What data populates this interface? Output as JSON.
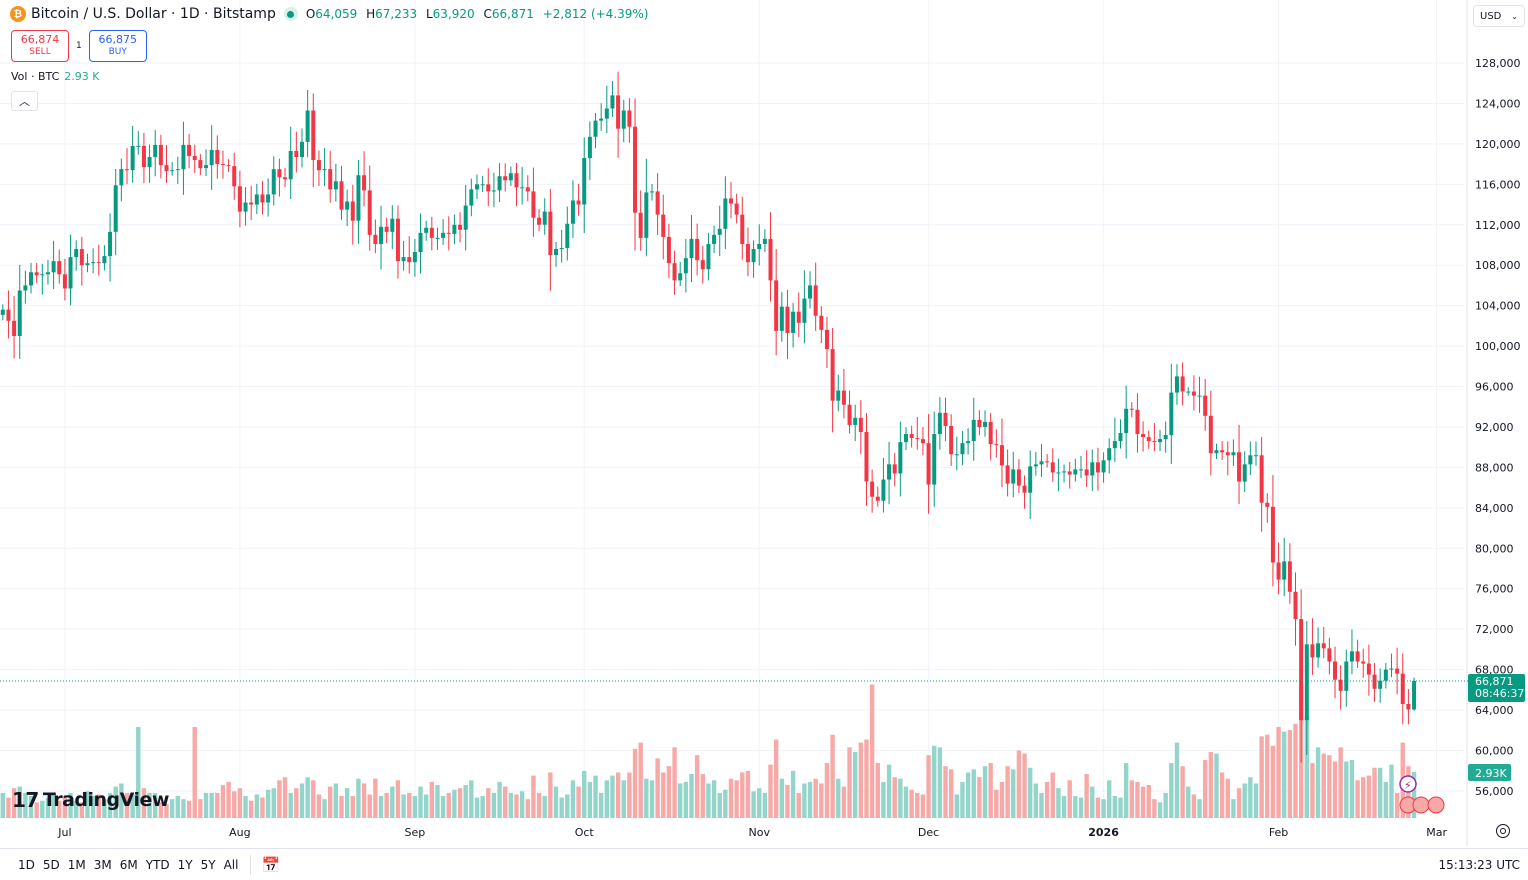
{
  "header": {
    "logo_letter": "₿",
    "title": "Bitcoin / U.S. Dollar · 1D · Bitstamp",
    "ohlc": {
      "o_label": "O",
      "o": "64,059",
      "h_label": "H",
      "h": "67,233",
      "l_label": "L",
      "l": "63,920",
      "c_label": "C",
      "c": "66,871",
      "change": "+2,812 (+4.39%)"
    }
  },
  "trade": {
    "sell_price": "66,874",
    "sell_label": "SELL",
    "spread": "1",
    "buy_price": "66,875",
    "buy_label": "BUY"
  },
  "volume_legend": {
    "label": "Vol · BTC",
    "value": "2.93 K"
  },
  "currency": {
    "value": "USD",
    "icon": "chevron-down-icon"
  },
  "colors": {
    "up": "#089981",
    "down": "#f23645",
    "vol_up": "#93d5ca",
    "vol_down": "#f7a9a7",
    "sell": "#f23645",
    "buy": "#2962ff"
  },
  "price_label": {
    "value": "66,871",
    "countdown": "08:46:37"
  },
  "volume_label": "2.93K",
  "branding": "TradingView",
  "bottom_bar": {
    "ranges": [
      "1D",
      "5D",
      "1M",
      "3M",
      "6M",
      "YTD",
      "1Y",
      "5Y",
      "All"
    ],
    "time": "15:13:23 UTC"
  },
  "chart_data": {
    "type": "candlestick",
    "symbol": "BTCUSD",
    "interval": "1D",
    "y_ticks": [
      56000,
      60000,
      64000,
      68000,
      72000,
      76000,
      80000,
      84000,
      88000,
      92000,
      96000,
      100000,
      104000,
      108000,
      112000,
      116000,
      120000,
      124000,
      128000
    ],
    "ylim": [
      52600,
      130000
    ],
    "grid": true,
    "time_axis": [
      {
        "label": "Jul",
        "date": "2025-07-01",
        "bold": false
      },
      {
        "label": "Aug",
        "date": "2025-08-01",
        "bold": false
      },
      {
        "label": "Sep",
        "date": "2025-09-01",
        "bold": false
      },
      {
        "label": "Oct",
        "date": "2025-10-01",
        "bold": false
      },
      {
        "label": "Nov",
        "date": "2025-11-01",
        "bold": false
      },
      {
        "label": "Dec",
        "date": "2025-12-01",
        "bold": false
      },
      {
        "label": "2026",
        "date": "2026-01-01",
        "bold": true
      },
      {
        "label": "Feb",
        "date": "2026-02-01",
        "bold": false
      },
      {
        "label": "Mar",
        "date": "2026-03-01",
        "bold": false
      }
    ],
    "last_candle": {
      "open": 64059,
      "high": 67233,
      "low": 63920,
      "close": 66871
    },
    "daily": [
      {
        "month": "2025-06",
        "from_day": 20,
        "close": [
          103600,
          102500,
          101000,
          105500,
          106000,
          107300,
          107000,
          107100,
          107300,
          108400,
          107100
        ],
        "volume_k": [
          1.6,
          1.3,
          1.9,
          2.0,
          1.6,
          1.4,
          1.0,
          1.1,
          1.3,
          1.6,
          1.1
        ]
      },
      {
        "month": "2025-07",
        "from_day": 1,
        "close": [
          105700,
          108800,
          109600,
          108000,
          108200,
          108300,
          108200,
          108900,
          111300,
          115900,
          117500,
          117400,
          119800,
          119800,
          117700,
          118700,
          119900,
          117900,
          117300,
          117400,
          117500,
          119900,
          118800,
          118400,
          117600,
          117900,
          119400,
          118000,
          117900,
          117800,
          115800
        ],
        "volume_k": [
          1.4,
          1.6,
          1.1,
          1.0,
          1.7,
          1.4,
          1.5,
          1.2,
          1.6,
          2.0,
          2.2,
          1.6,
          1.5,
          5.8,
          1.9,
          1.6,
          1.6,
          1.0,
          0.9,
          1.2,
          1.4,
          1.2,
          1.1,
          5.8,
          1.2,
          1.6,
          1.6,
          1.6,
          2.1,
          2.3,
          1.7
        ]
      },
      {
        "month": "2025-08",
        "from_day": 1,
        "close": [
          113300,
          114200,
          114000,
          115000,
          114200,
          115000,
          117500,
          116700,
          116500,
          119300,
          118700,
          120200,
          123300,
          118400,
          117400,
          117500,
          115500,
          116300,
          113500,
          114300,
          112400,
          116900,
          115400,
          111000,
          110100,
          111800,
          111300,
          112600,
          108400,
          108800,
          108300
        ],
        "volume_k": [
          1.9,
          1.4,
          1.1,
          1.5,
          1.3,
          1.8,
          1.9,
          2.4,
          2.6,
          1.6,
          1.9,
          2.2,
          2.6,
          2.4,
          1.5,
          1.2,
          2.0,
          2.2,
          1.4,
          1.9,
          1.4,
          2.5,
          2.2,
          1.5,
          2.5,
          1.4,
          1.6,
          2.0,
          2.4,
          1.5,
          1.6
        ]
      },
      {
        "month": "2025-09",
        "from_day": 1,
        "close": [
          109300,
          111200,
          111700,
          110700,
          110700,
          111200,
          111100,
          112000,
          111500,
          113900,
          115500,
          116000,
          116000,
          115300,
          115400,
          116800,
          116400,
          117100,
          115700,
          115700,
          115300,
          112700,
          112000,
          113300,
          109000,
          109600,
          109700,
          112100,
          114400,
          114000
        ],
        "volume_k": [
          1.4,
          2.0,
          1.5,
          2.3,
          2.1,
          1.4,
          1.6,
          1.8,
          1.9,
          2.1,
          2.4,
          1.3,
          1.4,
          1.9,
          1.6,
          2.3,
          2.0,
          1.6,
          1.5,
          1.7,
          1.2,
          2.7,
          1.6,
          1.4,
          2.9,
          2.0,
          1.3,
          1.5,
          2.4,
          2.0
        ]
      },
      {
        "month": "2025-10",
        "from_day": 1,
        "close": [
          118600,
          120700,
          122300,
          122500,
          123500,
          124800,
          121500,
          123300,
          121700,
          113200,
          110700,
          115200,
          115300,
          113000,
          110800,
          108200,
          106500,
          107200,
          108700,
          110600,
          108500,
          107600,
          110100,
          111000,
          111600,
          114600,
          114100,
          113000,
          110100,
          108300,
          109600
        ],
        "volume_k": [
          3.0,
          2.3,
          2.7,
          1.6,
          2.4,
          2.7,
          2.9,
          2.4,
          2.9,
          4.4,
          4.8,
          2.5,
          2.4,
          3.8,
          2.9,
          3.3,
          4.5,
          2.2,
          2.3,
          2.8,
          4.0,
          2.8,
          2.2,
          2.4,
          1.6,
          1.8,
          2.5,
          2.4,
          2.9,
          3.0,
          1.7
        ]
      },
      {
        "month": "2025-11",
        "from_day": 1,
        "close": [
          110100,
          110600,
          106500,
          101500,
          103900,
          101300,
          103400,
          102300,
          104700,
          106000,
          103000,
          101600,
          99700,
          94600,
          95600,
          94200,
          92200,
          92900,
          91500,
          86600,
          85100,
          84700,
          86800,
          88300,
          87400,
          90500,
          91300,
          90900,
          90800,
          90400
        ],
        "volume_k": [
          1.9,
          1.6,
          3.4,
          5.0,
          2.5,
          2.1,
          3.0,
          1.6,
          2.2,
          2.3,
          2.5,
          2.2,
          3.5,
          5.3,
          2.5,
          2.0,
          4.5,
          4.2,
          4.8,
          5.0,
          8.5,
          3.5,
          2.3,
          3.4,
          2.6,
          2.5,
          2.0,
          1.8,
          1.6,
          1.5
        ]
      },
      {
        "month": "2025-12",
        "from_day": 1,
        "close": [
          86300,
          91300,
          93400,
          92100,
          89300,
          89300,
          90400,
          90600,
          92700,
          92000,
          92500,
          90300,
          90200,
          88200,
          86400,
          87800,
          86200,
          85500,
          88100,
          88300,
          88600,
          88500,
          87500,
          87500,
          87600,
          87300,
          87800,
          87800,
          87200,
          88500,
          87500
        ],
        "volume_k": [
          4.0,
          4.6,
          4.5,
          3.3,
          3.1,
          1.5,
          2.3,
          2.9,
          3.1,
          2.6,
          3.3,
          3.5,
          1.8,
          2.3,
          3.3,
          3.1,
          4.3,
          4.1,
          3.2,
          2.2,
          1.6,
          2.3,
          2.9,
          1.9,
          1.4,
          2.4,
          1.4,
          1.3,
          2.8,
          2.0,
          1.3
        ]
      },
      {
        "month": "2026-01",
        "from_day": 1,
        "close": [
          88700,
          89900,
          90600,
          91400,
          93800,
          93700,
          91300,
          91000,
          90600,
          90500,
          90800,
          91200,
          95400,
          97000,
          95500,
          95500,
          95100,
          95100,
          93100,
          89400,
          89700,
          89500,
          89200,
          89500,
          86600,
          88300,
          89200,
          89200,
          84500,
          84100,
          78600
        ],
        "volume_k": [
          1.2,
          2.4,
          1.4,
          1.3,
          3.5,
          2.4,
          2.3,
          2.0,
          2.1,
          1.2,
          1.0,
          1.6,
          3.5,
          4.8,
          3.3,
          2.0,
          1.5,
          1.2,
          3.7,
          4.2,
          4.1,
          2.9,
          2.5,
          1.2,
          1.9,
          2.2,
          2.6,
          2.2,
          5.2,
          5.3,
          4.6
        ]
      },
      {
        "month": "2026-02",
        "from_day": 1,
        "close": [
          76900,
          78700,
          75700,
          73000,
          63000,
          70500,
          69200,
          70600,
          70100,
          68800,
          67000,
          65900,
          68800,
          69800,
          68800,
          68600,
          67500,
          66100,
          66900,
          68000,
          68100,
          67600,
          64600,
          64059,
          66871
        ],
        "volume_k": [
          5.8,
          5.5,
          5.6,
          6.0,
          8.5,
          6.5,
          3.5,
          4.5,
          4.1,
          4.0,
          3.6,
          4.5,
          3.6,
          3.7,
          2.4,
          2.6,
          2.7,
          3.2,
          3.2,
          2.3,
          3.4,
          1.6,
          4.8,
          3.3,
          2.93
        ]
      }
    ]
  }
}
